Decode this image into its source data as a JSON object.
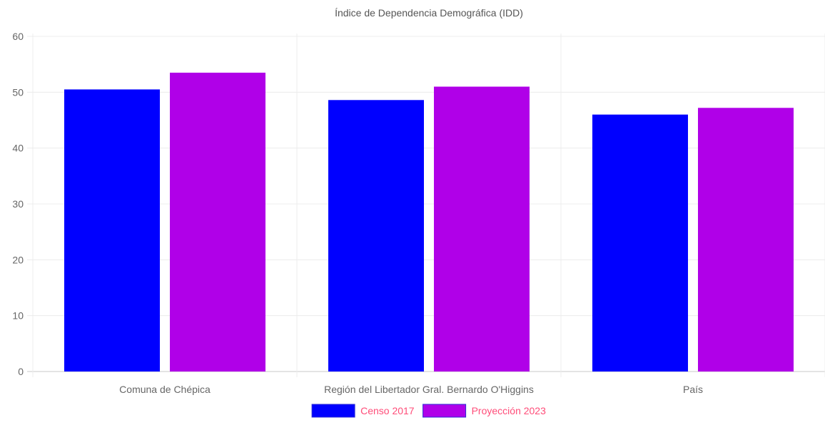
{
  "chart_data": {
    "type": "bar",
    "title": "Índice de Dependencia Demográfica (IDD)",
    "xlabel": "",
    "ylabel": "",
    "categories": [
      "Comuna de Chépica",
      "Región del Libertador Gral. Bernardo O'Higgins",
      "País"
    ],
    "series": [
      {
        "name": "Censo 2017",
        "values": [
          50.5,
          48.6,
          46.0
        ],
        "color": "#0000ff"
      },
      {
        "name": "Proyección 2023",
        "values": [
          53.5,
          51.0,
          47.2
        ],
        "color": "#b000e8"
      }
    ],
    "ylim": [
      0,
      60
    ],
    "yticks": [
      0,
      10,
      20,
      30,
      40,
      50,
      60
    ],
    "grid": true,
    "legend_position": "bottom",
    "legend_text_color": "#ff4d79"
  }
}
